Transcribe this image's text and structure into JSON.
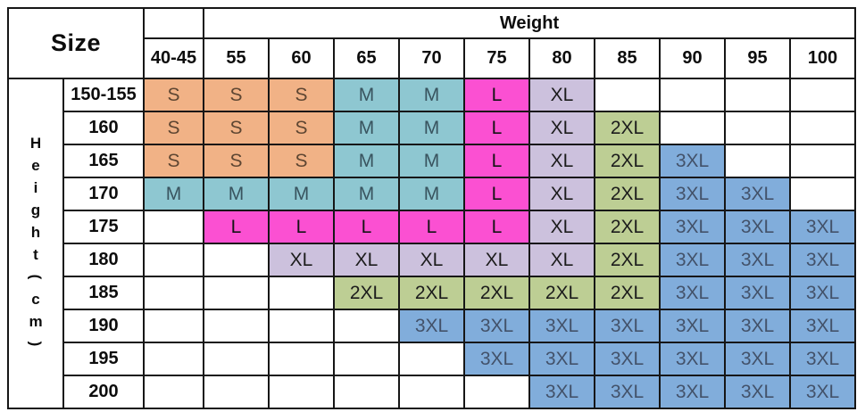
{
  "header": {
    "size_label": "Size",
    "weight_label": "Weight"
  },
  "height_axis_label": "Height(cm)",
  "chart_data": {
    "type": "table",
    "xlabel": "Weight",
    "ylabel": "Height(cm)",
    "corner_label": "Size",
    "columns": [
      "40-45",
      "55",
      "60",
      "65",
      "70",
      "75",
      "80",
      "85",
      "90",
      "95",
      "100"
    ],
    "rows": [
      {
        "height": "150-155",
        "cells": [
          "S",
          "S",
          "S",
          "M",
          "M",
          "L",
          "XL",
          "",
          "",
          "",
          ""
        ]
      },
      {
        "height": "160",
        "cells": [
          "S",
          "S",
          "S",
          "M",
          "M",
          "L",
          "XL",
          "2XL",
          "",
          "",
          ""
        ]
      },
      {
        "height": "165",
        "cells": [
          "S",
          "S",
          "S",
          "M",
          "M",
          "L",
          "XL",
          "2XL",
          "3XL",
          "",
          ""
        ]
      },
      {
        "height": "170",
        "cells": [
          "M",
          "M",
          "M",
          "M",
          "M",
          "L",
          "XL",
          "2XL",
          "3XL",
          "3XL",
          ""
        ]
      },
      {
        "height": "175",
        "cells": [
          "",
          "L",
          "L",
          "L",
          "L",
          "L",
          "XL",
          "2XL",
          "3XL",
          "3XL",
          "3XL"
        ]
      },
      {
        "height": "180",
        "cells": [
          "",
          "",
          "XL",
          "XL",
          "XL",
          "XL",
          "XL",
          "2XL",
          "3XL",
          "3XL",
          "3XL"
        ]
      },
      {
        "height": "185",
        "cells": [
          "",
          "",
          "",
          "2XL",
          "2XL",
          "2XL",
          "2XL",
          "2XL",
          "3XL",
          "3XL",
          "3XL"
        ]
      },
      {
        "height": "190",
        "cells": [
          "",
          "",
          "",
          "",
          "3XL",
          "3XL",
          "3XL",
          "3XL",
          "3XL",
          "3XL",
          "3XL"
        ]
      },
      {
        "height": "195",
        "cells": [
          "",
          "",
          "",
          "",
          "",
          "3XL",
          "3XL",
          "3XL",
          "3XL",
          "3XL",
          "3XL"
        ]
      },
      {
        "height": "200",
        "cells": [
          "",
          "",
          "",
          "",
          "",
          "",
          "3XL",
          "3XL",
          "3XL",
          "3XL",
          "3XL"
        ]
      }
    ],
    "size_colors": {
      "S": "#f1b286",
      "M": "#8ec7d1",
      "L": "#fb50d2",
      "XL": "#ccc1dd",
      "2XL": "#bdce94",
      "3XL": "#81addb"
    },
    "size_text_colors": {
      "S": "#5e4632",
      "M": "#39545f",
      "L": "#141414",
      "XL": "#1c1c1c",
      "2XL": "#1c1c1c",
      "3XL": "#43526a"
    }
  }
}
